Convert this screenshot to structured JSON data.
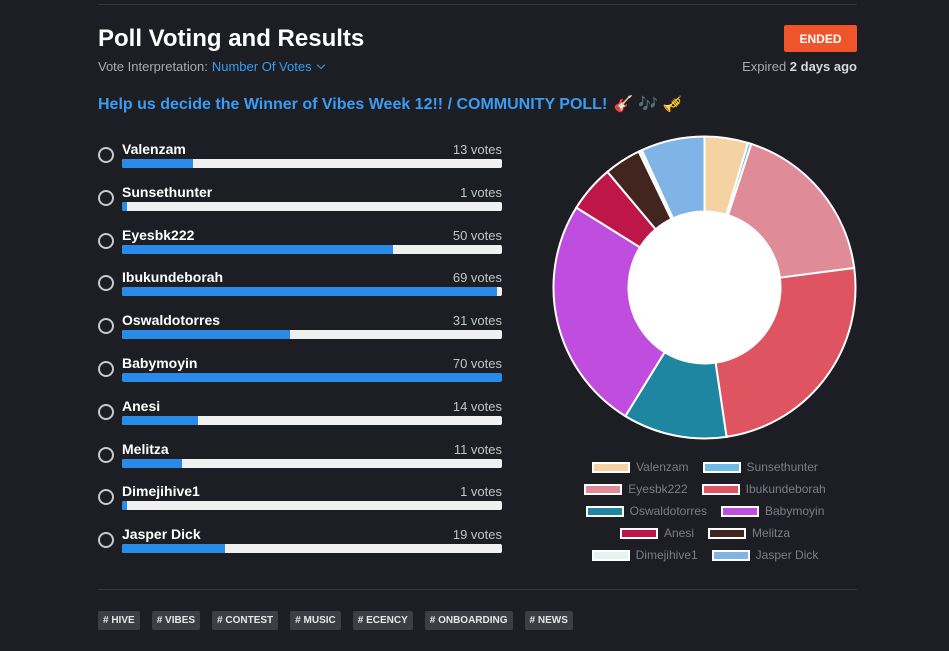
{
  "header": {
    "title": "Poll Voting and Results",
    "interpretation_label": "Vote Interpretation:",
    "interpretation_value": "Number Of Votes",
    "status": "ENDED",
    "expired_prefix": "Expired",
    "expired_value": "2 days ago"
  },
  "question": {
    "text": "Help us decide the Winner of Vibes Week 12!! / COMMUNITY POLL!",
    "emoji": "🎸 🎶 🎺"
  },
  "options": [
    {
      "name": "Valenzam",
      "votes": 13,
      "votes_label": "13 votes",
      "color": "#f5d2a1"
    },
    {
      "name": "Sunsethunter",
      "votes": 1,
      "votes_label": "1 votes",
      "color": "#6fbbe8"
    },
    {
      "name": "Eyesbk222",
      "votes": 50,
      "votes_label": "50 votes",
      "color": "#e08b98"
    },
    {
      "name": "Ibukundeborah",
      "votes": 69,
      "votes_label": "69 votes",
      "color": "#de5561"
    },
    {
      "name": "Oswaldotorres",
      "votes": 31,
      "votes_label": "31 votes",
      "color": "#1f86a2"
    },
    {
      "name": "Babymoyin",
      "votes": 70,
      "votes_label": "70 votes",
      "color": "#bf4ddd"
    },
    {
      "name": "Anesi",
      "votes": 14,
      "votes_label": "14 votes",
      "color": "#be1648"
    },
    {
      "name": "Melitza",
      "votes": 11,
      "votes_label": "11 votes",
      "color": "#432520"
    },
    {
      "name": "Dimejihive1",
      "votes": 1,
      "votes_label": "1 votes",
      "color": "#e5f4ee"
    },
    {
      "name": "Jasper Dick",
      "votes": 19,
      "votes_label": "19 votes",
      "color": "#80b3e6"
    }
  ],
  "chart_data": {
    "type": "pie",
    "categories": [
      "Valenzam",
      "Sunsethunter",
      "Eyesbk222",
      "Ibukundeborah",
      "Oswaldotorres",
      "Babymoyin",
      "Anesi",
      "Melitza",
      "Dimejihive1",
      "Jasper Dick"
    ],
    "values": [
      13,
      1,
      50,
      69,
      31,
      70,
      14,
      11,
      1,
      19
    ],
    "colors": [
      "#f5d2a1",
      "#6fbbe8",
      "#e08b98",
      "#de5561",
      "#1f86a2",
      "#bf4ddd",
      "#be1648",
      "#432520",
      "#e5f4ee",
      "#80b3e6"
    ],
    "donut": true,
    "legend": "bottom"
  },
  "tags": [
    "# HIVE",
    "# VIBES",
    "# CONTEST",
    "# MUSIC",
    "# ECENCY",
    "# ONBOARDING",
    "# NEWS"
  ],
  "icons": {
    "interpretation_dropdown": "chevron-down-icon",
    "option_select": "radio-icon"
  }
}
